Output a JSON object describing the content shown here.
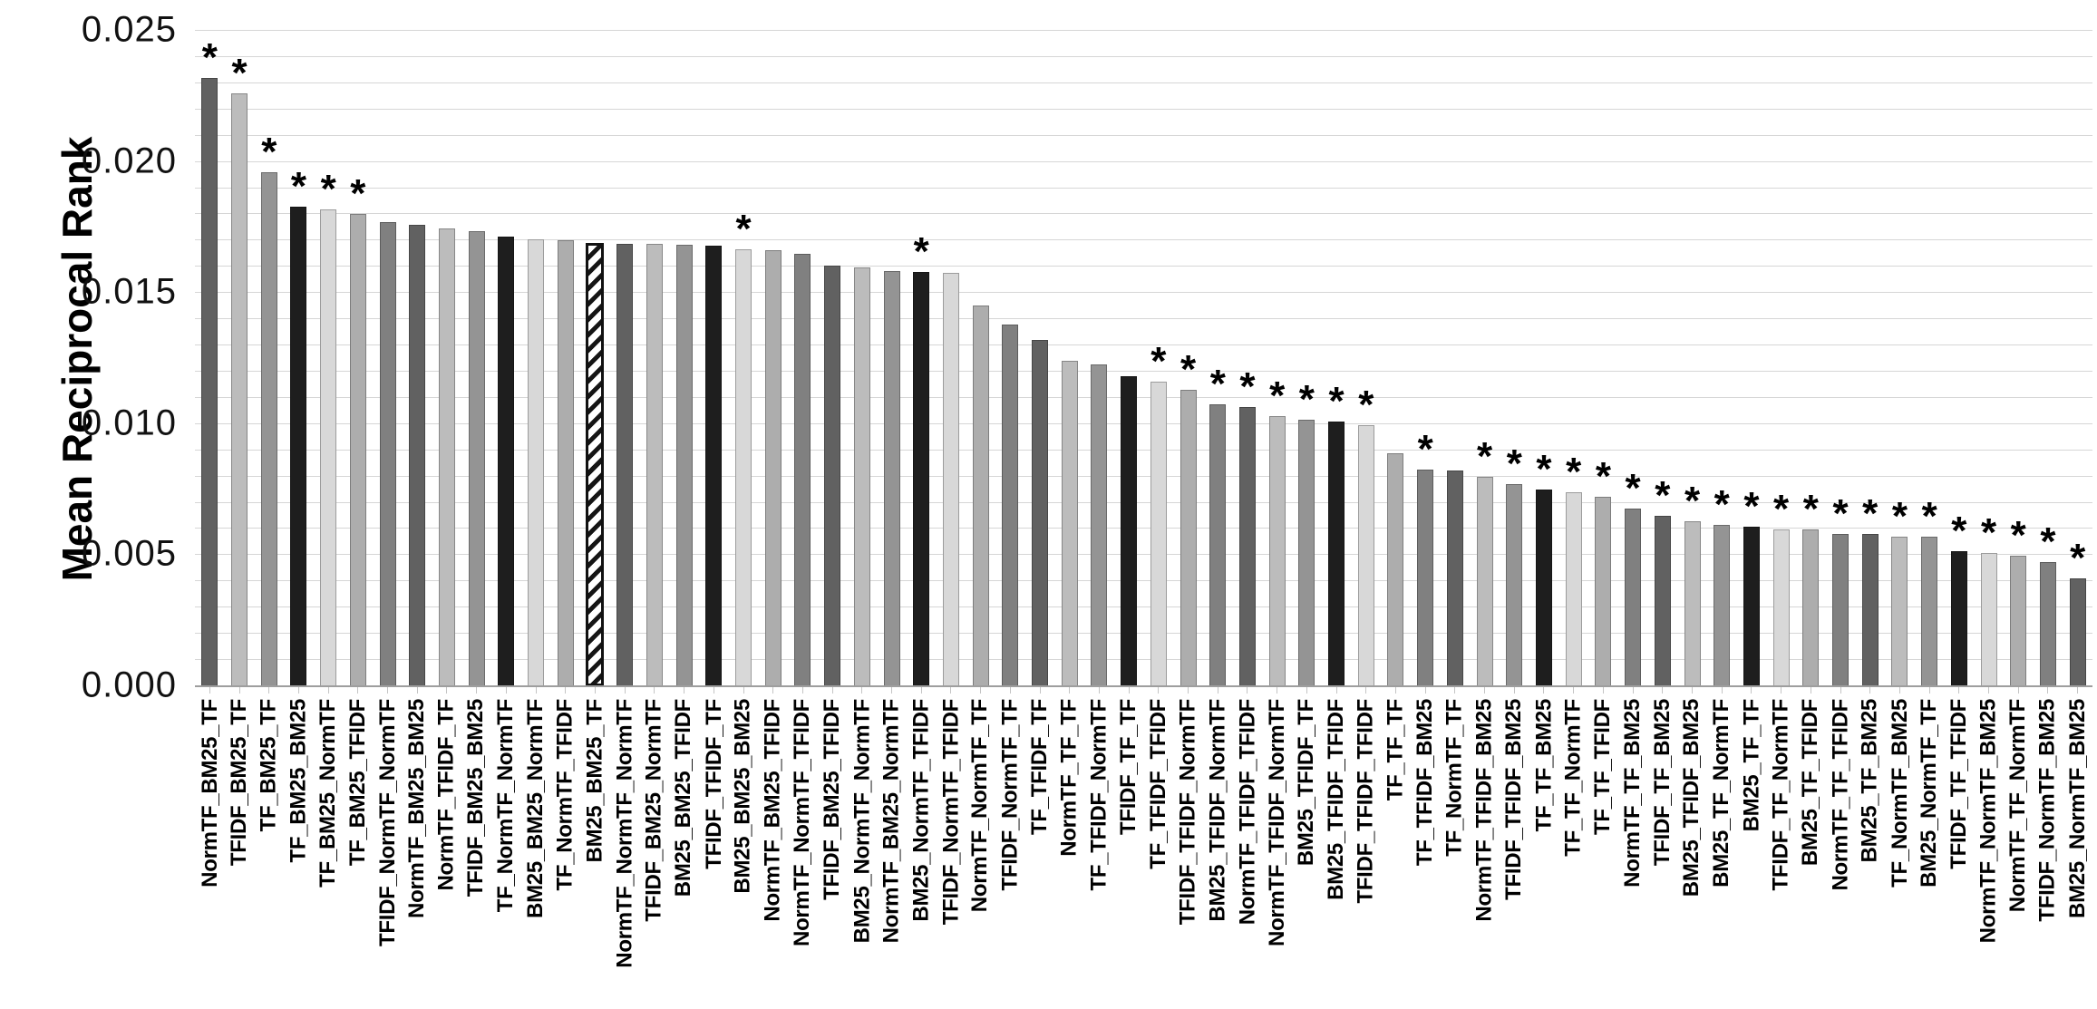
{
  "chart_data": {
    "type": "bar",
    "title": "",
    "xlabel": "",
    "ylabel": "Mean Reciprocal Rank",
    "ylim": [
      0,
      0.025
    ],
    "ytick_labels": [
      "0.025",
      "0.020",
      "0.015",
      "0.010",
      "0.005",
      "0.000"
    ],
    "ytick_values": [
      0.025,
      0.02,
      0.015,
      0.01,
      0.005,
      0.0
    ],
    "minor_grid_step": 0.001,
    "grid": "horizontal-minor-lines-on",
    "legend": "none",
    "significance_marker": "*",
    "marker_meaning_note": "asterisk printed above some bars",
    "highlighted_bar": "BM25_BM25_TF",
    "highlight_style": "white with black diagonal hatching and black outline",
    "palette": [
      "#616161",
      "#bcbcbc",
      "#949494",
      "#1e1e1e",
      "#d8d8d8",
      "#adadad",
      "#808080"
    ],
    "colors": {
      "gridline": "#d6d6d6",
      "axis_line": "#9e9e9e",
      "tick_mark": "#c4c4c4",
      "text": "#000000",
      "background": "#ffffff"
    },
    "bars": [
      {
        "label": "NormTF_BM25_TF",
        "value": 0.0232,
        "star": true,
        "tone": 0,
        "hatched": false
      },
      {
        "label": "TFIDF_BM25_TF",
        "value": 0.0226,
        "star": true,
        "tone": 1,
        "hatched": false
      },
      {
        "label": "TF_BM25_TF",
        "value": 0.0196,
        "star": true,
        "tone": 2,
        "hatched": false
      },
      {
        "label": "TF_BM25_BM25",
        "value": 0.0183,
        "star": true,
        "tone": 3,
        "hatched": false
      },
      {
        "label": "TF_BM25_NormTF",
        "value": 0.0182,
        "star": true,
        "tone": 4,
        "hatched": false
      },
      {
        "label": "TF_BM25_TFIDF",
        "value": 0.018,
        "star": true,
        "tone": 5,
        "hatched": false
      },
      {
        "label": "TFIDF_NormTF_NormTF",
        "value": 0.0177,
        "star": false,
        "tone": 6,
        "hatched": false
      },
      {
        "label": "NormTF_BM25_BM25",
        "value": 0.0176,
        "star": false,
        "tone": 0,
        "hatched": false
      },
      {
        "label": "NormTF_TFIDF_TF",
        "value": 0.01745,
        "star": false,
        "tone": 1,
        "hatched": false
      },
      {
        "label": "TFIDF_BM25_BM25",
        "value": 0.01737,
        "star": false,
        "tone": 2,
        "hatched": false
      },
      {
        "label": "TF_NormTF_NormTF",
        "value": 0.01715,
        "star": false,
        "tone": 3,
        "hatched": false
      },
      {
        "label": "BM25_BM25_NormTF",
        "value": 0.01703,
        "star": false,
        "tone": 4,
        "hatched": false
      },
      {
        "label": "TF_NormTF_TFIDF",
        "value": 0.017,
        "star": false,
        "tone": 5,
        "hatched": false
      },
      {
        "label": "BM25_BM25_TF",
        "value": 0.0169,
        "star": false,
        "tone": 6,
        "hatched": true
      },
      {
        "label": "NormTF_NormTF_NormTF",
        "value": 0.01689,
        "star": false,
        "tone": 0,
        "hatched": false
      },
      {
        "label": "TFIDF_BM25_NormTF",
        "value": 0.01688,
        "star": false,
        "tone": 1,
        "hatched": false
      },
      {
        "label": "BM25_BM25_TFIDF",
        "value": 0.01685,
        "star": false,
        "tone": 2,
        "hatched": false
      },
      {
        "label": "TFIDF_TFIDF_TF",
        "value": 0.0168,
        "star": false,
        "tone": 3,
        "hatched": false
      },
      {
        "label": "BM25_BM25_BM25",
        "value": 0.01667,
        "star": true,
        "tone": 4,
        "hatched": false
      },
      {
        "label": "NormTF_BM25_TFIDF",
        "value": 0.01664,
        "star": false,
        "tone": 5,
        "hatched": false
      },
      {
        "label": "NormTF_NormTF_TFIDF",
        "value": 0.01651,
        "star": false,
        "tone": 6,
        "hatched": false
      },
      {
        "label": "TFIDF_BM25_TFIDF",
        "value": 0.01603,
        "star": false,
        "tone": 0,
        "hatched": false
      },
      {
        "label": "BM25_NormTF_NormTF",
        "value": 0.01597,
        "star": false,
        "tone": 1,
        "hatched": false
      },
      {
        "label": "NormTF_BM25_NormTF",
        "value": 0.01582,
        "star": false,
        "tone": 2,
        "hatched": false
      },
      {
        "label": "BM25_NormTF_TFIDF",
        "value": 0.01579,
        "star": true,
        "tone": 3,
        "hatched": false
      },
      {
        "label": "TFIDF_NormTF_TFIDF",
        "value": 0.01576,
        "star": false,
        "tone": 4,
        "hatched": false
      },
      {
        "label": "NormTF_NormTF_TF",
        "value": 0.01453,
        "star": false,
        "tone": 5,
        "hatched": false
      },
      {
        "label": "TFIDF_NormTF_TF",
        "value": 0.0138,
        "star": false,
        "tone": 6,
        "hatched": false
      },
      {
        "label": "TF_TFIDF_TF",
        "value": 0.0132,
        "star": false,
        "tone": 0,
        "hatched": false
      },
      {
        "label": "NormTF_TF_TF",
        "value": 0.01242,
        "star": false,
        "tone": 1,
        "hatched": false
      },
      {
        "label": "TF_TFIDF_NormTF",
        "value": 0.01228,
        "star": false,
        "tone": 2,
        "hatched": false
      },
      {
        "label": "TFIDF_TF_TF",
        "value": 0.01182,
        "star": false,
        "tone": 3,
        "hatched": false
      },
      {
        "label": "TF_TFIDF_TFIDF",
        "value": 0.01163,
        "star": true,
        "tone": 4,
        "hatched": false
      },
      {
        "label": "TFIDF_TFIDF_NormTF",
        "value": 0.01132,
        "star": true,
        "tone": 5,
        "hatched": false
      },
      {
        "label": "BM25_TFIDF_NormTF",
        "value": 0.01077,
        "star": true,
        "tone": 6,
        "hatched": false
      },
      {
        "label": "NormTF_TFIDF_TFIDF",
        "value": 0.01066,
        "star": true,
        "tone": 0,
        "hatched": false
      },
      {
        "label": "NormTF_TFIDF_NormTF",
        "value": 0.01031,
        "star": true,
        "tone": 1,
        "hatched": false
      },
      {
        "label": "BM25_TFIDF_TF",
        "value": 0.01017,
        "star": true,
        "tone": 2,
        "hatched": false
      },
      {
        "label": "BM25_TFIDF_TFIDF",
        "value": 0.01009,
        "star": true,
        "tone": 3,
        "hatched": false
      },
      {
        "label": "TFIDF_TFIDF_TFIDF",
        "value": 0.00996,
        "star": true,
        "tone": 4,
        "hatched": false
      },
      {
        "label": "TF_TF_TF",
        "value": 0.00887,
        "star": false,
        "tone": 5,
        "hatched": false
      },
      {
        "label": "TF_TFIDF_BM25",
        "value": 0.00827,
        "star": true,
        "tone": 6,
        "hatched": false
      },
      {
        "label": "TF_NormTF_TF",
        "value": 0.00824,
        "star": false,
        "tone": 0,
        "hatched": false
      },
      {
        "label": "NormTF_TFIDF_BM25",
        "value": 0.008,
        "star": true,
        "tone": 1,
        "hatched": false
      },
      {
        "label": "TFIDF_TFIDF_BM25",
        "value": 0.0077,
        "star": true,
        "tone": 2,
        "hatched": false
      },
      {
        "label": "TF_TF_BM25",
        "value": 0.0075,
        "star": true,
        "tone": 3,
        "hatched": false
      },
      {
        "label": "TF_TF_NormTF",
        "value": 0.00741,
        "star": true,
        "tone": 4,
        "hatched": false
      },
      {
        "label": "TF_TF_TFIDF",
        "value": 0.00723,
        "star": true,
        "tone": 5,
        "hatched": false
      },
      {
        "label": "NormTF_TF_BM25",
        "value": 0.00677,
        "star": true,
        "tone": 6,
        "hatched": false
      },
      {
        "label": "TFIDF_TF_BM25",
        "value": 0.00651,
        "star": true,
        "tone": 0,
        "hatched": false
      },
      {
        "label": "BM25_TFIDF_BM25",
        "value": 0.00631,
        "star": true,
        "tone": 1,
        "hatched": false
      },
      {
        "label": "BM25_TF_NormTF",
        "value": 0.00614,
        "star": true,
        "tone": 2,
        "hatched": false
      },
      {
        "label": "BM25_TF_TF",
        "value": 0.0061,
        "star": true,
        "tone": 3,
        "hatched": false
      },
      {
        "label": "TFIDF_TF_NormTF",
        "value": 0.00599,
        "star": true,
        "tone": 4,
        "hatched": false
      },
      {
        "label": "BM25_TF_TFIDF",
        "value": 0.00597,
        "star": true,
        "tone": 5,
        "hatched": false
      },
      {
        "label": "NormTF_TF_TFIDF",
        "value": 0.00582,
        "star": true,
        "tone": 6,
        "hatched": false
      },
      {
        "label": "BM25_TF_BM25",
        "value": 0.00582,
        "star": true,
        "tone": 0,
        "hatched": false
      },
      {
        "label": "TF_NormTF_BM25",
        "value": 0.00571,
        "star": true,
        "tone": 1,
        "hatched": false
      },
      {
        "label": "BM25_NormTF_TF",
        "value": 0.0057,
        "star": true,
        "tone": 2,
        "hatched": false
      },
      {
        "label": "TFIDF_TF_TFIDF",
        "value": 0.00516,
        "star": true,
        "tone": 3,
        "hatched": false
      },
      {
        "label": "NormTF_NormTF_BM25",
        "value": 0.00507,
        "star": true,
        "tone": 4,
        "hatched": false
      },
      {
        "label": "NormTF_TF_NormTF",
        "value": 0.00499,
        "star": true,
        "tone": 5,
        "hatched": false
      },
      {
        "label": "TFIDF_NormTF_BM25",
        "value": 0.00473,
        "star": true,
        "tone": 6,
        "hatched": false
      },
      {
        "label": "BM25_NormTF_BM25",
        "value": 0.0041,
        "star": true,
        "tone": 0,
        "hatched": false
      }
    ]
  }
}
